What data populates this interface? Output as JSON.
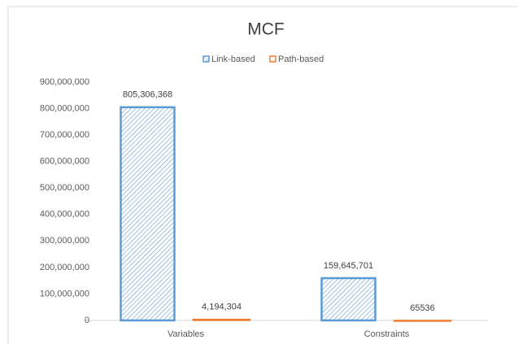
{
  "chart_data": {
    "type": "bar",
    "title": "MCF",
    "categories": [
      "Variables",
      "Constraints"
    ],
    "series": [
      {
        "name": "Link-based",
        "color": "#5b9bd5",
        "hatch": true,
        "values": [
          805306368,
          159645701
        ],
        "value_labels": [
          "805,306,368",
          "159,645,701"
        ]
      },
      {
        "name": "Path-based",
        "color": "#ed7d31",
        "hatch": false,
        "values": [
          4194304,
          65536
        ],
        "value_labels": [
          "4,194,304",
          "65536"
        ]
      }
    ],
    "ylim": [
      0,
      900000000
    ],
    "yticks": [
      0,
      {
        "value": 100000000,
        "label": "100,000,000"
      },
      {
        "value": 200000000,
        "label": "200,000,000"
      },
      {
        "value": 300000000,
        "label": "300,000,000"
      },
      {
        "value": 400000000,
        "label": "400,000,000"
      },
      {
        "value": 500000000,
        "label": "500,000,000"
      },
      {
        "value": 600000000,
        "label": "600,000,000"
      },
      {
        "value": 700000000,
        "label": "700,000,000"
      },
      {
        "value": 800000000,
        "label": "800,000,000"
      },
      {
        "value": 900000000,
        "label": "900,000,000"
      }
    ],
    "grid": false,
    "legend": "top"
  }
}
